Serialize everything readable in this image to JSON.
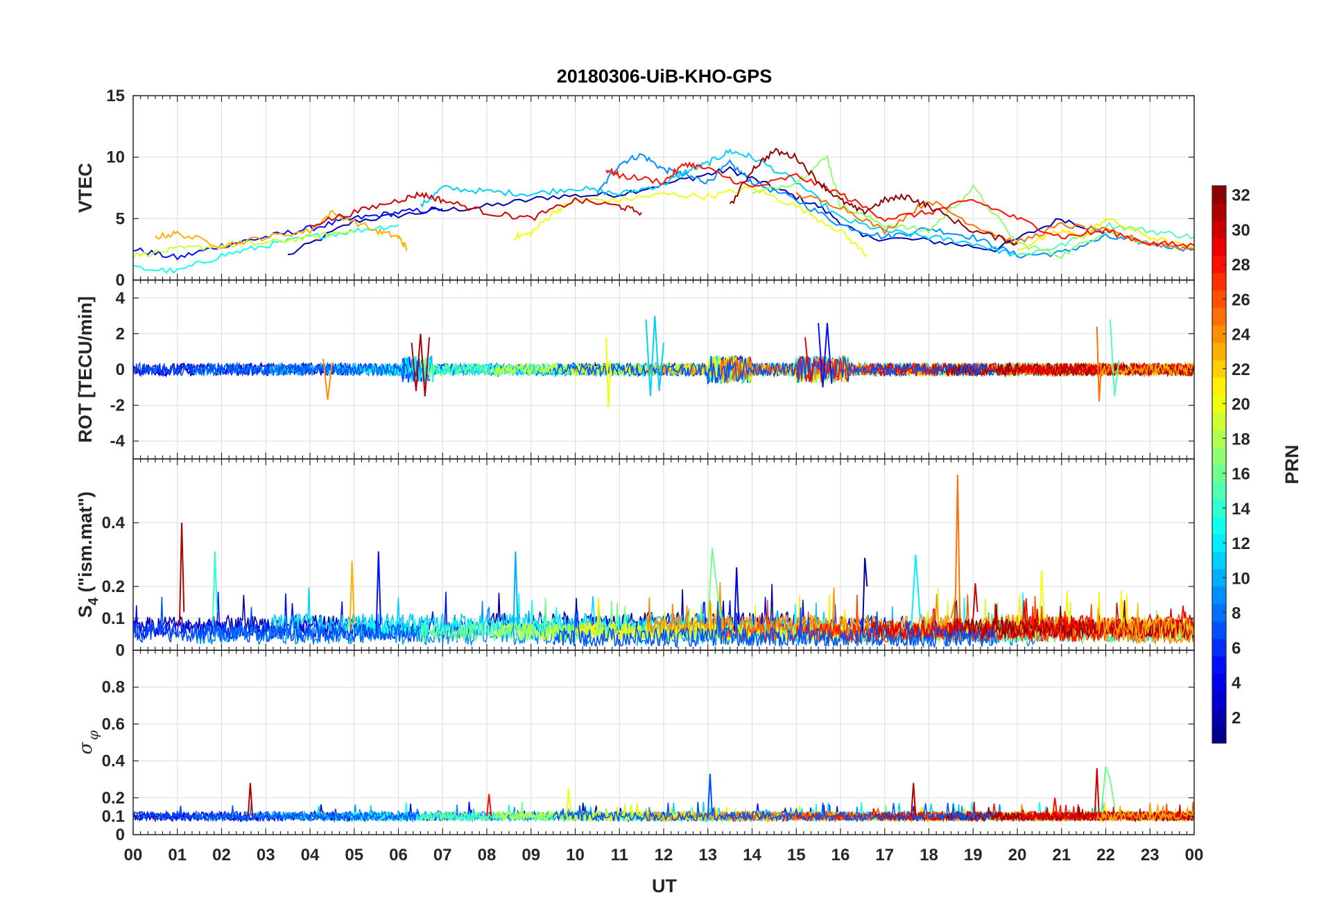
{
  "chart_data": {
    "title": "20180306-UiB-KHO-GPS",
    "xlabel": "UT",
    "x_tick_labels": [
      "00",
      "01",
      "02",
      "03",
      "04",
      "05",
      "06",
      "07",
      "08",
      "09",
      "10",
      "11",
      "12",
      "13",
      "14",
      "15",
      "16",
      "17",
      "18",
      "19",
      "20",
      "21",
      "22",
      "23",
      "00"
    ],
    "xlim": [
      0,
      24
    ],
    "colorbar": {
      "label": "PRN",
      "range": [
        1,
        32
      ],
      "tick_values": [
        2,
        4,
        6,
        8,
        10,
        12,
        14,
        16,
        18,
        20,
        22,
        24,
        26,
        28,
        30,
        32
      ],
      "tick_labels": [
        "2",
        "4",
        "6",
        "8",
        "10",
        "12",
        "14",
        "16",
        "18",
        "20",
        "22",
        "24",
        "26",
        "28",
        "30",
        "32"
      ],
      "colormap": "jet"
    },
    "panels": [
      {
        "id": "vtec",
        "type": "line",
        "ylabel": "VTEC",
        "ylim": [
          0,
          15
        ],
        "y_tick_values": [
          0,
          5,
          10,
          15
        ],
        "y_tick_labels": [
          "0",
          "5",
          "10",
          "15"
        ],
        "series": [
          {
            "prn": 2,
            "x": [
              3.5,
              5.0,
              6.5,
              8.0,
              9.5,
              11.0,
              12.5,
              13.5,
              14.5,
              15.5,
              16.5,
              18.0,
              19.5,
              21.0,
              22.0
            ],
            "y": [
              2.0,
              4.8,
              5.5,
              6.0,
              6.8,
              7.0,
              8.2,
              9.0,
              7.5,
              6.0,
              3.5,
              3.2,
              2.5,
              5.0,
              3.8
            ]
          },
          {
            "prn": 5,
            "x": [
              0.0,
              1.0,
              2.0,
              3.0,
              4.0,
              5.0,
              6.0,
              7.0
            ],
            "y": [
              2.5,
              1.8,
              2.8,
              3.5,
              4.2,
              5.0,
              5.5,
              5.8
            ]
          },
          {
            "prn": 9,
            "x": [
              10.5,
              11.0,
              11.5,
              12.0,
              12.5,
              13.0,
              13.5,
              14.0,
              15.0,
              16.0,
              17.0,
              18.0,
              19.0,
              20.0,
              21.0,
              22.0,
              23.0,
              24.0
            ],
            "y": [
              7.0,
              9.5,
              10.2,
              9.0,
              8.5,
              8.0,
              9.5,
              8.0,
              6.5,
              4.5,
              3.5,
              4.2,
              3.5,
              2.0,
              2.2,
              3.5,
              3.0,
              2.5
            ]
          },
          {
            "prn": 11,
            "x": [
              6.5,
              7.0,
              8.0,
              9.0,
              10.0,
              11.0,
              12.0,
              12.5,
              13.0,
              13.5,
              14.0,
              15.0,
              16.0,
              17.0,
              18.0,
              19.0,
              20.0
            ],
            "y": [
              6.0,
              7.5,
              7.2,
              7.0,
              7.5,
              7.0,
              7.8,
              8.8,
              9.5,
              10.5,
              10.0,
              8.0,
              5.0,
              4.0,
              3.5,
              3.0,
              2.0
            ]
          },
          {
            "prn": 13,
            "x": [
              0.0,
              1.0,
              2.0,
              3.0,
              4.0,
              5.0,
              6.0
            ],
            "y": [
              1.0,
              0.7,
              2.0,
              2.8,
              3.5,
              4.0,
              4.5
            ]
          },
          {
            "prn": 15,
            "x": [
              20.0,
              21.0,
              22.0,
              23.0,
              24.0
            ],
            "y": [
              2.0,
              2.8,
              4.5,
              4.0,
              3.5
            ]
          },
          {
            "prn": 17,
            "x": [
              14.0,
              15.0,
              15.7,
              16.0,
              17.0,
              18.0,
              19.0,
              20.0,
              21.0,
              22.0,
              23.0
            ],
            "y": [
              7.0,
              8.0,
              10.0,
              6.0,
              4.5,
              4.0,
              7.5,
              3.0,
              2.0,
              4.0,
              3.0
            ]
          },
          {
            "prn": 19,
            "x": [
              0.0,
              1.0,
              2.0,
              3.0,
              4.0,
              5.0
            ],
            "y": [
              2.0,
              2.5,
              2.8,
              3.0,
              3.5,
              4.0
            ]
          },
          {
            "prn": 20,
            "x": [
              8.6,
              9.0,
              9.5,
              10.0,
              11.0,
              12.0,
              13.0,
              14.0,
              15.0,
              16.0,
              16.6
            ],
            "y": [
              3.5,
              3.8,
              5.5,
              6.5,
              6.5,
              7.0,
              6.8,
              7.5,
              6.0,
              4.0,
              2.0
            ]
          },
          {
            "prn": 21,
            "x": [
              20.0,
              21.0,
              21.5,
              22.0,
              23.0,
              24.0
            ],
            "y": [
              2.5,
              4.0,
              3.5,
              5.0,
              3.5,
              2.5
            ]
          },
          {
            "prn": 23,
            "x": [
              0.5,
              1.0,
              2.0,
              3.0,
              4.0,
              4.5,
              5.5,
              6.0,
              6.2
            ],
            "y": [
              3.5,
              3.8,
              2.8,
              3.5,
              4.0,
              5.5,
              4.0,
              3.5,
              2.5
            ]
          },
          {
            "prn": 25,
            "x": [
              15.0,
              16.0,
              17.0,
              18.0,
              19.0,
              20.0,
              21.0,
              22.0,
              23.0,
              24.0
            ],
            "y": [
              7.0,
              6.0,
              4.0,
              6.5,
              4.5,
              3.0,
              4.5,
              4.0,
              3.0,
              2.5
            ]
          },
          {
            "prn": 28,
            "x": [
              10.7,
              11.0,
              12.0,
              12.5,
              13.0,
              14.0,
              15.0,
              16.0,
              17.0,
              18.0,
              19.0,
              20.0,
              21.0,
              22.0,
              23.0,
              24.0
            ],
            "y": [
              9.0,
              8.5,
              8.0,
              9.5,
              9.0,
              7.5,
              8.5,
              7.0,
              5.0,
              5.5,
              6.5,
              5.0,
              3.5,
              4.0,
              3.0,
              2.8
            ]
          },
          {
            "prn": 30,
            "x": [
              4.0,
              5.0,
              6.0,
              6.5,
              7.0,
              8.0,
              9.0,
              10.0,
              11.0,
              11.5
            ],
            "y": [
              4.5,
              5.5,
              6.5,
              7.0,
              6.5,
              5.5,
              5.0,
              6.5,
              6.0,
              5.5
            ]
          },
          {
            "prn": 32,
            "x": [
              13.5,
              14.0,
              14.5,
              15.0,
              15.5,
              16.0,
              16.5,
              17.0,
              17.5,
              18.0,
              19.0,
              20.0
            ],
            "y": [
              6.0,
              9.0,
              10.5,
              10.0,
              8.0,
              6.5,
              5.5,
              6.5,
              6.8,
              6.0,
              4.0,
              3.0
            ]
          }
        ]
      },
      {
        "id": "rot",
        "type": "line",
        "ylabel": "ROT [TECU/min]",
        "ylim": [
          -5,
          5
        ],
        "y_tick_values": [
          -4,
          -2,
          0,
          2,
          4
        ],
        "y_tick_labels": [
          "-4",
          "-2",
          "0",
          "2",
          "4"
        ],
        "series": [
          {
            "prn": 31,
            "x": [
              6.3,
              6.4,
              6.5,
              6.6,
              6.7
            ],
            "y": [
              1.5,
              -1.2,
              2.0,
              -1.5,
              1.8
            ]
          },
          {
            "prn": 11,
            "x": [
              11.6,
              11.7,
              11.8,
              11.9,
              12.0
            ],
            "y": [
              2.8,
              -1.5,
              3.0,
              -1.2,
              1.5
            ]
          },
          {
            "prn": 5,
            "x": [
              15.5,
              15.6,
              15.7,
              15.8
            ],
            "y": [
              2.6,
              -1.0,
              2.6,
              -0.8
            ]
          },
          {
            "prn": 20,
            "x": [
              10.7,
              10.75,
              10.8
            ],
            "y": [
              1.8,
              -2.1,
              0.5
            ]
          },
          {
            "prn": 24,
            "x": [
              4.3,
              4.4,
              4.5
            ],
            "y": [
              0.6,
              -1.7,
              0.4
            ]
          },
          {
            "prn": 25,
            "x": [
              21.8,
              21.85,
              21.9
            ],
            "y": [
              2.4,
              -1.8,
              0.3
            ]
          },
          {
            "prn": 15,
            "x": [
              22.1,
              22.2,
              22.3
            ],
            "y": [
              2.8,
              -1.5,
              0.5
            ]
          },
          {
            "prn": 29,
            "x": [
              15.2,
              15.3,
              15.4
            ],
            "y": [
              1.8,
              -0.7,
              0.3
            ]
          }
        ]
      },
      {
        "id": "s4",
        "type": "line",
        "ylabel": "S4 (\"ism.mat\")",
        "ylim": [
          0,
          0.6
        ],
        "y_tick_values": [
          0,
          0.1,
          0.2,
          0.4
        ],
        "y_tick_labels": [
          "0",
          "0.1",
          "0.2",
          "0.4"
        ],
        "series": [
          {
            "prn": 31,
            "x": [
              1.05,
              1.1,
              1.15
            ],
            "y": [
              0.08,
              0.4,
              0.12
            ]
          },
          {
            "prn": 14,
            "x": [
              1.8,
              1.85,
              1.9
            ],
            "y": [
              0.08,
              0.31,
              0.12
            ]
          },
          {
            "prn": 23,
            "x": [
              4.9,
              4.95,
              5.0
            ],
            "y": [
              0.06,
              0.28,
              0.08
            ]
          },
          {
            "prn": 5,
            "x": [
              5.5,
              5.55,
              5.6
            ],
            "y": [
              0.06,
              0.31,
              0.08
            ]
          },
          {
            "prn": 10,
            "x": [
              8.6,
              8.65,
              8.7
            ],
            "y": [
              0.06,
              0.31,
              0.08
            ]
          },
          {
            "prn": 16,
            "x": [
              13.0,
              13.1,
              13.2,
              13.3
            ],
            "y": [
              0.1,
              0.32,
              0.2,
              0.1
            ]
          },
          {
            "prn": 4,
            "x": [
              13.6,
              13.65,
              13.7
            ],
            "y": [
              0.06,
              0.26,
              0.08
            ]
          },
          {
            "prn": 2,
            "x": [
              16.5,
              16.55,
              16.6
            ],
            "y": [
              0.06,
              0.29,
              0.2
            ]
          },
          {
            "prn": 12,
            "x": [
              17.6,
              17.7,
              17.8
            ],
            "y": [
              0.07,
              0.3,
              0.1
            ]
          },
          {
            "prn": 25,
            "x": [
              18.5,
              18.6,
              18.65,
              18.7
            ],
            "y": [
              0.1,
              0.16,
              0.55,
              0.1
            ]
          },
          {
            "prn": 30,
            "x": [
              19.0,
              19.05,
              19.1
            ],
            "y": [
              0.1,
              0.21,
              0.12
            ]
          },
          {
            "prn": 20,
            "x": [
              20.5,
              20.55,
              20.6
            ],
            "y": [
              0.08,
              0.25,
              0.1
            ]
          }
        ]
      },
      {
        "id": "sigma_phi",
        "type": "line",
        "ylabel": "σφ",
        "ylim": [
          0,
          1
        ],
        "y_tick_values": [
          0,
          0.1,
          0.2,
          0.4,
          0.6,
          0.8
        ],
        "y_tick_labels": [
          "0",
          "0.1",
          "0.2",
          "0.4",
          "0.6",
          "0.8"
        ],
        "series": [
          {
            "prn": 31,
            "x": [
              2.6,
              2.65,
              2.7
            ],
            "y": [
              0.1,
              0.28,
              0.1
            ]
          },
          {
            "prn": 28,
            "x": [
              8.0,
              8.05,
              8.1
            ],
            "y": [
              0.1,
              0.22,
              0.1
            ]
          },
          {
            "prn": 20,
            "x": [
              9.8,
              9.85,
              9.9
            ],
            "y": [
              0.1,
              0.25,
              0.12
            ]
          },
          {
            "prn": 7,
            "x": [
              13.0,
              13.05,
              13.1
            ],
            "y": [
              0.1,
              0.33,
              0.1
            ]
          },
          {
            "prn": 31,
            "x": [
              17.6,
              17.65,
              17.7
            ],
            "y": [
              0.1,
              0.28,
              0.1
            ]
          },
          {
            "prn": 28,
            "x": [
              20.8,
              20.85,
              20.9
            ],
            "y": [
              0.1,
              0.2,
              0.1
            ]
          },
          {
            "prn": 30,
            "x": [
              21.75,
              21.8,
              21.85
            ],
            "y": [
              0.1,
              0.36,
              0.1
            ]
          },
          {
            "prn": 16,
            "x": [
              21.9,
              22.0,
              22.1,
              22.2
            ],
            "y": [
              0.12,
              0.37,
              0.3,
              0.15
            ]
          }
        ]
      }
    ]
  }
}
